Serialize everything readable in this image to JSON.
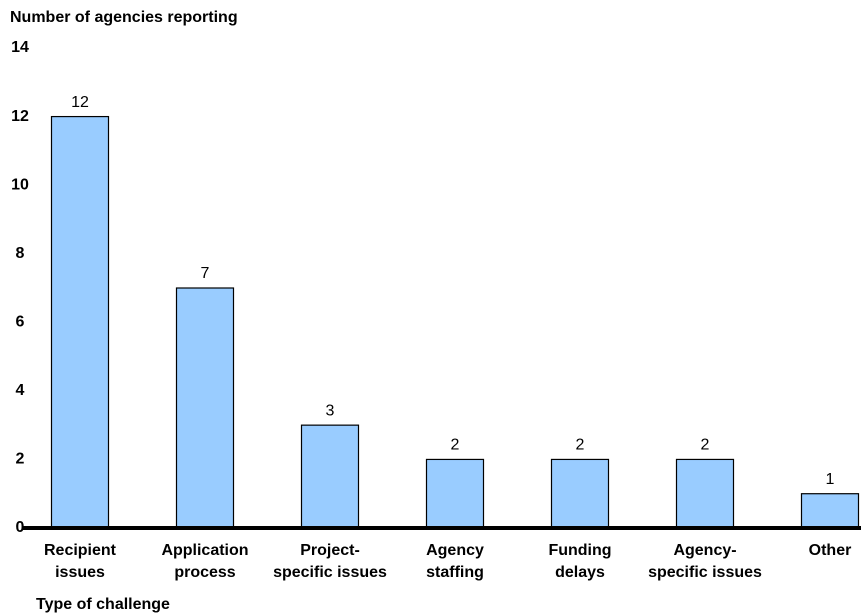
{
  "chart_data": {
    "type": "bar",
    "title": "Number of agencies reporting",
    "x_label": "Type of challenge",
    "categories": [
      [
        "Recipient",
        "issues"
      ],
      [
        "Application",
        "process"
      ],
      [
        "Project-",
        "specific issues"
      ],
      [
        "Agency",
        "staffing"
      ],
      [
        "Funding",
        "delays"
      ],
      [
        "Agency-",
        "specific issues"
      ],
      [
        "Other"
      ]
    ],
    "values": [
      12,
      7,
      3,
      2,
      2,
      2,
      1
    ],
    "color": "#99ccff",
    "ylim": [
      0,
      14
    ],
    "yticks": [
      0,
      2,
      4,
      6,
      8,
      10,
      12,
      14
    ],
    "grid": false
  }
}
